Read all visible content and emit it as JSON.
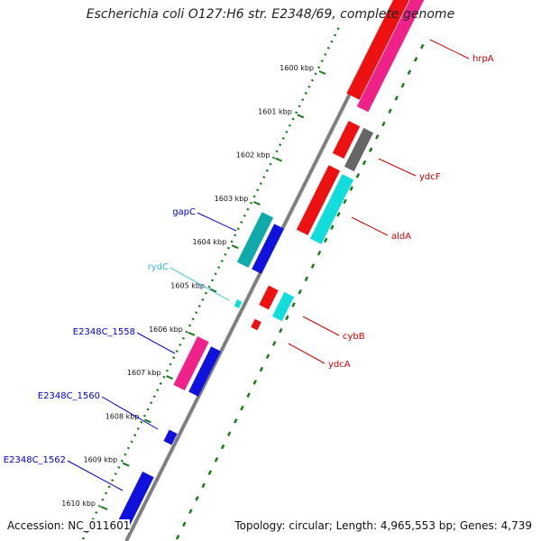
{
  "title": "Escherichia coli O127:H6 str. E2348/69, complete genome",
  "footer": {
    "accession": "Accession: NC_011601",
    "topology": "Topology: circular; Length: 4,965,553 bp; Genes: 4,739"
  },
  "ticks": [
    {
      "label": "1600 kbp"
    },
    {
      "label": "1601 kbp"
    },
    {
      "label": "1602 kbp"
    },
    {
      "label": "1603 kbp"
    },
    {
      "label": "1604 kbp"
    },
    {
      "label": "1605 kbp"
    },
    {
      "label": "1606 kbp"
    },
    {
      "label": "1607 kbp"
    },
    {
      "label": "1608 kbp"
    },
    {
      "label": "1609 kbp"
    },
    {
      "label": "1610 kbp"
    }
  ],
  "genes": {
    "left": [
      {
        "name": "gapC",
        "color": "#0000cc"
      },
      {
        "name": "rydC",
        "color": "#33bbdd"
      },
      {
        "name": "E2348C_1558",
        "color": "#0000cc"
      },
      {
        "name": "E2348C_1560",
        "color": "#0000cc"
      },
      {
        "name": "E2348C_1562",
        "color": "#0000cc"
      }
    ],
    "right": [
      {
        "name": "hrpA",
        "color": "#cc0000"
      },
      {
        "name": "ydcF",
        "color": "#cc0000"
      },
      {
        "name": "aldA",
        "color": "#cc0000"
      },
      {
        "name": "cybB",
        "color": "#cc0000"
      },
      {
        "name": "ydcA",
        "color": "#cc0000"
      }
    ]
  },
  "colors": {
    "backbone": "#888888",
    "gc_dots": "#1a7a1a",
    "red_gene": "#ee1111",
    "pink_gene": "#ee2288",
    "cyan_gene": "#11dddd",
    "teal_gene": "#11aaaa",
    "blue_gene": "#1111dd",
    "gray_gene": "#666666"
  }
}
